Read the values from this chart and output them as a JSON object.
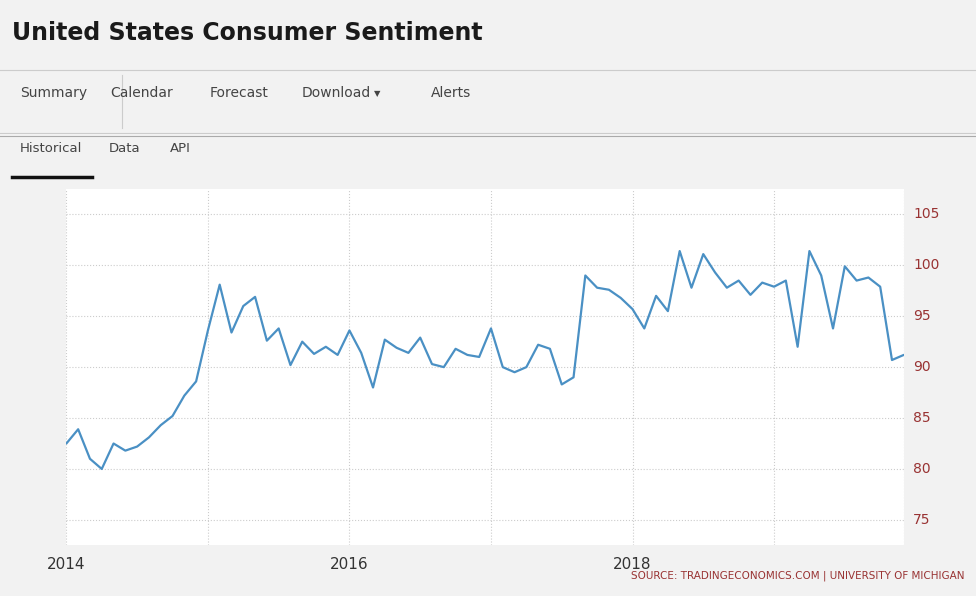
{
  "title": "United States Consumer Sentiment",
  "nav_items": [
    "Summary",
    "Calendar",
    "Forecast",
    "Download",
    "Alerts"
  ],
  "nav_items2": [
    "Historical",
    "Data",
    "API"
  ],
  "source_text": "SOURCE: TRADINGECONOMICS.COM | UNIVERSITY OF MICHIGAN",
  "line_color": "#4a90c4",
  "background_color": "#ffffff",
  "header_bg": "#f2f2f2",
  "grid_color": "#cccccc",
  "ytick_color": "#993333",
  "yticks": [
    75,
    80,
    85,
    90,
    95,
    100,
    105
  ],
  "xtick_labels": [
    "2014",
    "2016",
    "2018"
  ],
  "xtick_positions": [
    0,
    24,
    48
  ],
  "ylim": [
    72.5,
    107.5
  ],
  "xlim_start": 0,
  "xlim_end": 71,
  "vgrid_positions": [
    0,
    12,
    24,
    36,
    48,
    60,
    71
  ],
  "data_x": [
    0,
    1,
    2,
    3,
    4,
    5,
    6,
    7,
    8,
    9,
    10,
    11,
    12,
    13,
    14,
    15,
    16,
    17,
    18,
    19,
    20,
    21,
    22,
    23,
    24,
    25,
    26,
    27,
    28,
    29,
    30,
    31,
    32,
    33,
    34,
    35,
    36,
    37,
    38,
    39,
    40,
    41,
    42,
    43,
    44,
    45,
    46,
    47,
    48,
    49,
    50,
    51,
    52,
    53,
    54,
    55,
    56,
    57,
    58,
    59,
    60,
    61,
    62,
    63,
    64,
    65,
    66,
    67,
    68,
    69,
    70,
    71
  ],
  "data_y": [
    82.5,
    83.9,
    81.0,
    80.0,
    82.5,
    81.8,
    82.2,
    83.1,
    84.3,
    85.2,
    87.2,
    88.6,
    93.6,
    98.1,
    93.4,
    96.0,
    96.9,
    92.6,
    93.8,
    90.2,
    92.5,
    91.3,
    92.0,
    91.2,
    93.6,
    91.4,
    88.0,
    92.7,
    91.9,
    91.4,
    92.9,
    90.3,
    90.0,
    91.8,
    91.2,
    91.0,
    93.8,
    90.0,
    89.5,
    90.0,
    92.2,
    91.8,
    88.3,
    89.0,
    99.0,
    97.8,
    97.6,
    96.8,
    95.7,
    93.8,
    97.0,
    95.5,
    101.4,
    97.8,
    101.1,
    99.3,
    97.8,
    98.5,
    97.1,
    98.3,
    97.9,
    98.5,
    92.0,
    101.4,
    99.0,
    93.8,
    99.9,
    98.5,
    98.8,
    97.9,
    90.7,
    91.2
  ]
}
